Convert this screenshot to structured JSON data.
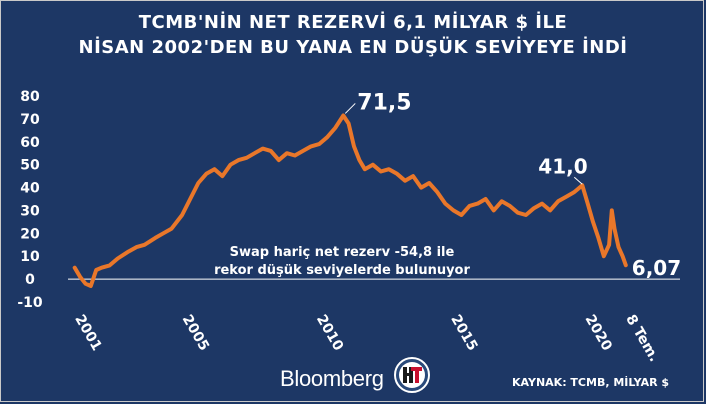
{
  "title_line1": "TCMB'NİN NET REZERVİ 6,1 MİLYAR $ İLE",
  "title_line2": "NİSAN 2002'DEN BU YANA EN DÜŞÜK SEVİYEYE İNDİ",
  "brand": "Bloomberg",
  "source": "KAYNAK: TCMB, MİLYAR $",
  "colors": {
    "background": "#1d3765",
    "series": "#e9772a",
    "text": "#ffffff",
    "zero_line": "#ffffff"
  },
  "chart_data": {
    "type": "line",
    "title": "TCMB'NİN NET REZERVİ 6,1 MİLYAR $ İLE NİSAN 2002'DEN BU YANA EN DÜŞÜK SEVİYEYE İNDİ",
    "xlabel": "",
    "ylabel": "",
    "ylim": [
      -10,
      80
    ],
    "y_ticks": [
      "80",
      "70",
      "60",
      "50",
      "40",
      "30",
      "20",
      "10",
      "0",
      "-10"
    ],
    "y_tick_values": [
      80,
      70,
      60,
      50,
      40,
      30,
      20,
      10,
      0,
      -10
    ],
    "x_ticks": [
      "2001",
      "2005",
      "2010",
      "2015",
      "2020",
      "8 Tem."
    ],
    "x_tick_values": [
      2001,
      2005,
      2010,
      2015,
      2020,
      2021.52
    ],
    "grid": false,
    "series": [
      {
        "x": [
          2001.0,
          2001.2,
          2001.4,
          2001.6,
          2001.8,
          2002.0,
          2002.3,
          2002.6,
          2003.0,
          2003.3,
          2003.6,
          2004.0,
          2004.3,
          2004.6,
          2005.0,
          2005.3,
          2005.6,
          2005.9,
          2006.2,
          2006.5,
          2006.8,
          2007.1,
          2007.4,
          2007.7,
          2008.0,
          2008.3,
          2008.6,
          2008.9,
          2009.2,
          2009.5,
          2009.8,
          2010.1,
          2010.4,
          2010.7,
          2011.0,
          2011.2,
          2011.4,
          2011.6,
          2011.8,
          2012.1,
          2012.4,
          2012.7,
          2013.0,
          2013.3,
          2013.6,
          2013.9,
          2014.2,
          2014.5,
          2014.8,
          2015.1,
          2015.4,
          2015.7,
          2016.0,
          2016.3,
          2016.6,
          2016.9,
          2017.2,
          2017.5,
          2017.8,
          2018.1,
          2018.4,
          2018.7,
          2019.0,
          2019.3,
          2019.6,
          2019.9,
          2020.1,
          2020.3,
          2020.5,
          2020.7,
          2020.9,
          2021.0,
          2021.1,
          2021.25,
          2021.4,
          2021.52
        ],
        "values": [
          5,
          1,
          -2,
          -3,
          4,
          5,
          6,
          9,
          12,
          14,
          15,
          18,
          20,
          22,
          28,
          35,
          42,
          46,
          48,
          45,
          50,
          52,
          53,
          55,
          57,
          56,
          52,
          55,
          54,
          56,
          58,
          59,
          62,
          66,
          71.5,
          68,
          58,
          52,
          48,
          50,
          47,
          48,
          46,
          43,
          45,
          40,
          42,
          38,
          33,
          30,
          28,
          32,
          33,
          35,
          30,
          34,
          32,
          29,
          28,
          31,
          33,
          30,
          34,
          36,
          38,
          41.0,
          33,
          25,
          18,
          10,
          15,
          30,
          22,
          14,
          10,
          6.07
        ]
      }
    ],
    "annotations": [
      "71,5",
      "41,0",
      "6,07"
    ],
    "annotation_note_line1": "Swap hariç net rezerv -54,8 ile",
    "annotation_note_line2": "rekor düşük seviyelerde bulunuyor"
  }
}
